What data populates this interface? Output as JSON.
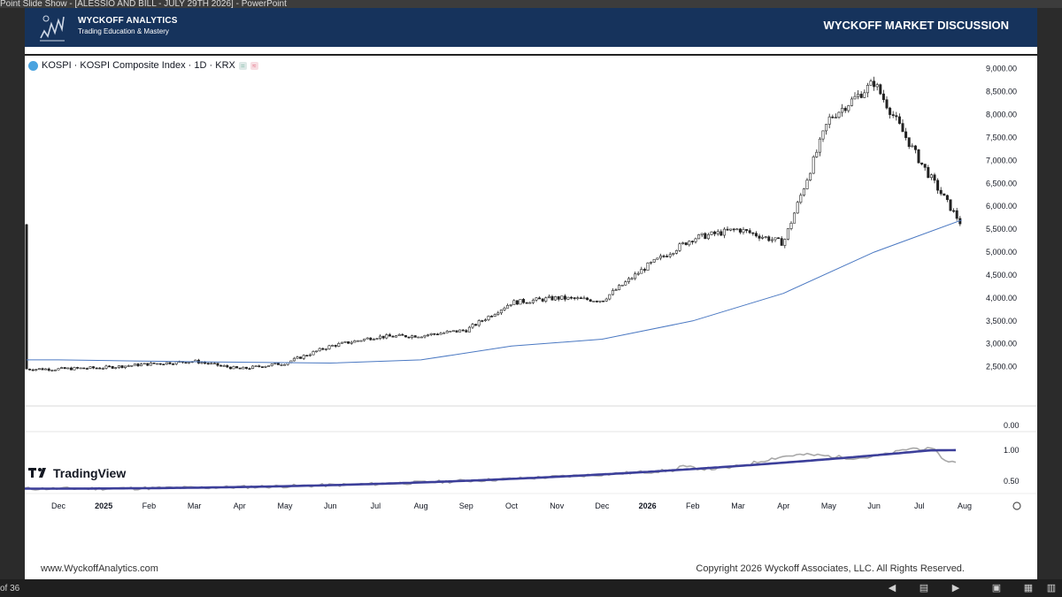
{
  "window": {
    "title": "Point Slide Show - [ALESSIO AND BILL - JULY 29TH 2026] - PowerPoint"
  },
  "header": {
    "brand_name": "WYCKOFF ANALYTICS",
    "brand_tagline": "Trading Education & Mastery",
    "title": "WYCKOFF MARKET DISCUSSION"
  },
  "chart_data": {
    "type": "candlestick",
    "symbol_label": "KOSPI · KOSPI Composite Index · 1D · KRX",
    "price_axis": {
      "ticks": [
        9000,
        8500,
        8000,
        7500,
        7000,
        6500,
        6000,
        5500,
        5000,
        4500,
        4000,
        3500,
        3000,
        2500
      ],
      "tick_labels": [
        "9,000.00",
        "8,500.00",
        "8,000.00",
        "7,500.00",
        "7,000.00",
        "6,500.00",
        "6,000.00",
        "5,500.00",
        "5,000.00",
        "4,500.00",
        "4,000.00",
        "3,500.00",
        "3,000.00",
        "2,500.00"
      ],
      "range": [
        2300,
        9400
      ]
    },
    "time_axis": {
      "labels": [
        "Dec",
        "2025",
        "Feb",
        "Mar",
        "Apr",
        "May",
        "Jun",
        "Jul",
        "Aug",
        "Sep",
        "Oct",
        "Nov",
        "Dec",
        "2026",
        "Feb",
        "Mar",
        "Apr",
        "May",
        "Jun",
        "Jul",
        "Aug"
      ]
    },
    "price_series": [
      [
        "2024-12",
        2450
      ],
      [
        "2025-01",
        2480
      ],
      [
        "2025-02",
        2560
      ],
      [
        "2025-03",
        2620
      ],
      [
        "2025-04",
        2450
      ],
      [
        "2025-05",
        2580
      ],
      [
        "2025-06",
        2950
      ],
      [
        "2025-07",
        3150
      ],
      [
        "2025-08",
        3180
      ],
      [
        "2025-09",
        3300
      ],
      [
        "2025-10",
        3900
      ],
      [
        "2025-11",
        4000
      ],
      [
        "2025-12",
        3950
      ],
      [
        "2026-01",
        4700
      ],
      [
        "2026-02",
        5300
      ],
      [
        "2026-03",
        5500
      ],
      [
        "2026-04",
        5200
      ],
      [
        "2026-05",
        7900
      ],
      [
        "2026-06",
        8700
      ],
      [
        "2026-07",
        7000
      ],
      [
        "2026-07-29",
        5600
      ]
    ],
    "moving_average": [
      [
        "2024-12",
        2650
      ],
      [
        "2025-02",
        2620
      ],
      [
        "2025-04",
        2600
      ],
      [
        "2025-06",
        2580
      ],
      [
        "2025-08",
        2650
      ],
      [
        "2025-10",
        2950
      ],
      [
        "2025-12",
        3100
      ],
      [
        "2026-02",
        3500
      ],
      [
        "2026-04",
        4100
      ],
      [
        "2026-06",
        5000
      ],
      [
        "2026-07-29",
        5700
      ]
    ],
    "indicator_pane": {
      "tick_labels": [
        "0.00",
        "1.00",
        "0.50"
      ]
    }
  },
  "tradingview_logo": "TradingView",
  "footer": {
    "website": "www.WyckoffAnalytics.com",
    "copyright": "Copyright 2026 Wyckoff Associates, LLC. All Rights Reserved."
  },
  "statusbar": {
    "slide_counter": "of 36"
  }
}
